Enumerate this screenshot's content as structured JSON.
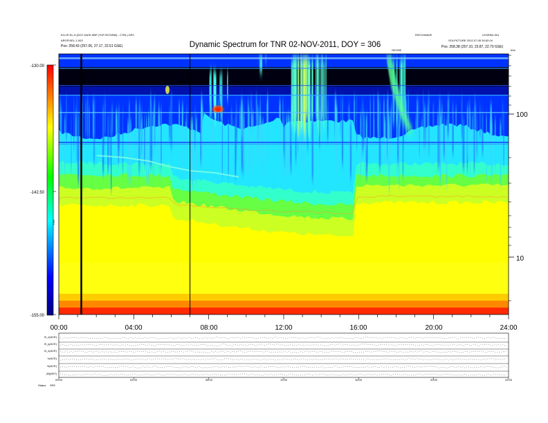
{
  "chart_data": [
    {
      "type": "heatmap",
      "title": "Dynamic Spectrum for TNR 02-NOV-2011, DOY = 306",
      "x_tick_labels": [
        "00:00",
        "04:00",
        "08:00",
        "12:00",
        "16:00",
        "20:00",
        "24:00"
      ],
      "y_tick_labels": [
        "100",
        "10"
      ],
      "colorbar": {
        "label": "TNR",
        "tick_labels": [
          "-130.00",
          "-142.50",
          "-155.00"
        ],
        "range": [
          -155,
          -130
        ],
        "colors": [
          "#000000",
          "#0000ff",
          "#00ffff",
          "#00ff00",
          "#ffff00",
          "#ff0000"
        ]
      },
      "vertical_markers_hours": [
        1.2,
        7.0
      ],
      "event_label": "GEOSE",
      "header_left": [
        "ECLIP-EL-5 (DOY DATA SBP (TOP-RCS/RM) - CTRL) DPC",
        "ARGPIXEL-1-003",
        "Pos:   258.43 (257.05, 27.17, 22.51 GSE)"
      ],
      "header_right": [
        "PATCHWAVE",
        "LEGEND-001",
        "SOLPICTURE 2012-07-05 30:52:04",
        "Pos:   258.38 (257.10, 23.87, 22.70 GSE)"
      ],
      "corner_label": "kHz"
    },
    {
      "type": "line",
      "series_labels": [
        "B_x(ACE)",
        "B_y(ACE)",
        "B_z(ACE)",
        "V(ACE)",
        "N(ACE)",
        "|B|(WIT)"
      ],
      "x_tick_labels": [
        "00:00",
        "04:00",
        "08:00",
        "12:00",
        "16:00",
        "20:00",
        "24:00"
      ],
      "footer_label": "Status",
      "footer_value": "SPE"
    }
  ]
}
